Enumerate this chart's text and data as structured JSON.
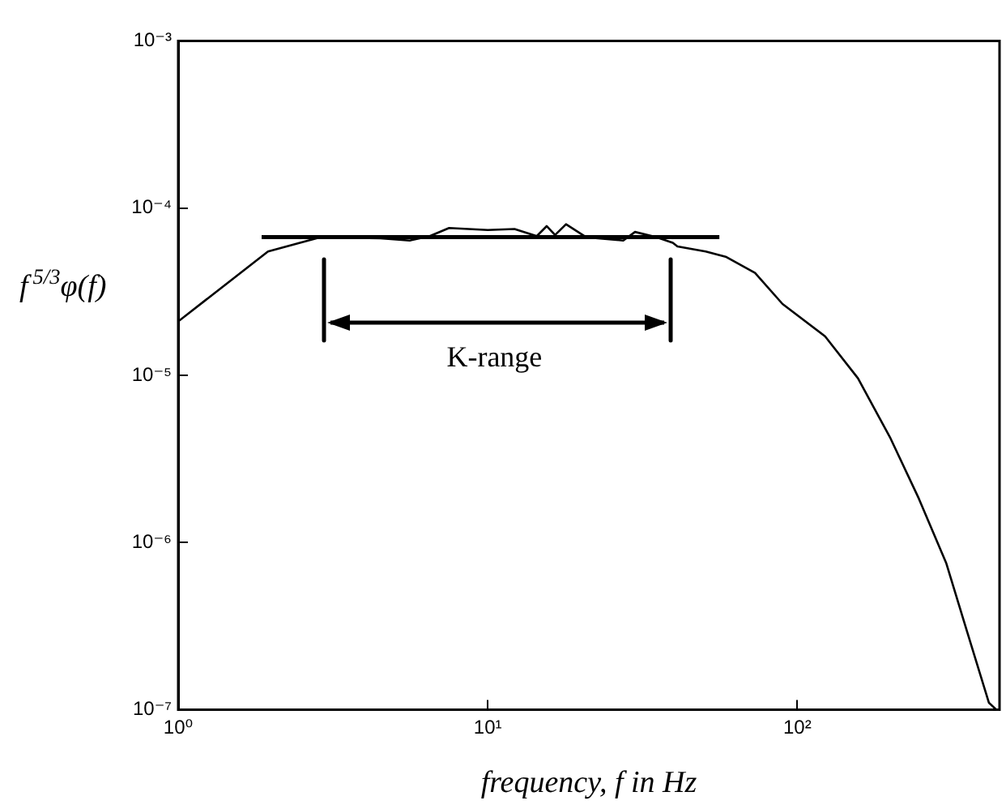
{
  "chart_data": {
    "type": "line",
    "xlabel": "frequency, f in Hz",
    "ylabel": "f$^{5/3}$φ(f)",
    "log": "xy",
    "grid": false,
    "legend": false,
    "marker": "none",
    "line_style": "solid",
    "xlim": [
      1,
      450
    ],
    "ylim": [
      1e-07,
      0.001
    ],
    "xticks": [
      {
        "value": 1,
        "label": "10⁰"
      },
      {
        "value": 10,
        "label": "10¹"
      },
      {
        "value": 100,
        "label": "10²"
      }
    ],
    "yticks": [
      {
        "value": 1e-07,
        "label": "10⁻⁷"
      },
      {
        "value": 1e-06,
        "label": "10⁻⁶"
      },
      {
        "value": 1e-05,
        "label": "10⁻⁵"
      },
      {
        "value": 0.0001,
        "label": "10⁻⁴"
      },
      {
        "value": 0.001,
        "label": "10⁻³"
      }
    ],
    "series": [
      {
        "color": "#000000",
        "x": [
          1,
          1.95,
          2.89,
          4.5,
          5.6,
          6.5,
          7.5,
          10,
          12.2,
          14.4,
          15.5,
          16.5,
          17.9,
          20.8,
          27.4,
          29.9,
          35,
          39.6,
          41,
          50.6,
          59,
          73,
          89.6,
          123,
          157,
          200,
          247,
          303,
          355,
          416,
          440
        ],
        "values": [
          2.1e-05,
          5.5e-05,
          6.7e-05,
          6.6e-05,
          6.4e-05,
          6.8e-05,
          7.6e-05,
          7.4e-05,
          7.5e-05,
          6.8e-05,
          7.8e-05,
          6.9e-05,
          8e-05,
          6.7e-05,
          6.4e-05,
          7.2e-05,
          6.7e-05,
          6.2e-05,
          5.9e-05,
          5.5e-05,
          5.1e-05,
          4.1e-05,
          2.67e-05,
          1.71e-05,
          9.6e-06,
          4.2e-06,
          1.83e-06,
          7.5e-07,
          2.86e-07,
          1.1e-07,
          1e-07
        ]
      },
      {
        "type": "line",
        "color": "#000000",
        "x": [
          1.86,
          56
        ],
        "values": [
          6.7e-05,
          6.7e-05
        ]
      }
    ],
    "annotations": [
      "K-range"
    ]
  }
}
